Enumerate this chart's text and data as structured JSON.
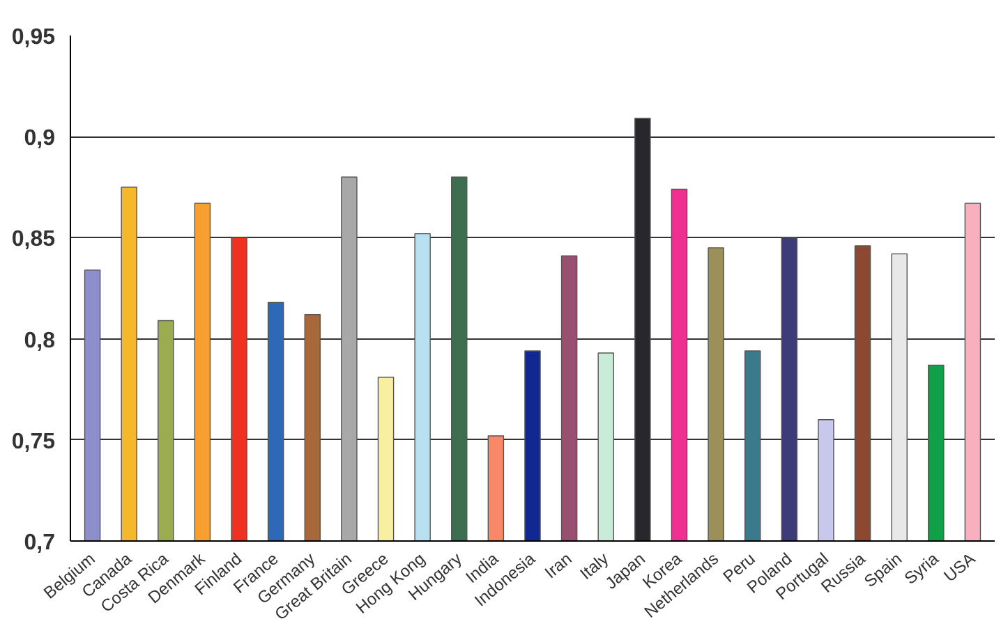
{
  "chart_data": {
    "type": "bar",
    "categories": [
      "Belgium",
      "Canada",
      "Costa Rica",
      "Denmark",
      "Finland",
      "France",
      "Germany",
      "Great Britain",
      "Greece",
      "Hong Kong",
      "Hungary",
      "India",
      "Indonesia",
      "Iran",
      "Italy",
      "Japan",
      "Korea",
      "Netherlands",
      "Peru",
      "Poland",
      "Portugal",
      "Russia",
      "Spain",
      "Syria",
      "USA"
    ],
    "values": [
      0.834,
      0.875,
      0.809,
      0.867,
      0.85,
      0.818,
      0.812,
      0.88,
      0.781,
      0.852,
      0.88,
      0.752,
      0.794,
      0.841,
      0.793,
      0.909,
      0.874,
      0.845,
      0.794,
      0.85,
      0.76,
      0.846,
      0.842,
      0.787,
      0.867
    ],
    "colors": [
      "#8c8fcc",
      "#f5b82a",
      "#9aab50",
      "#f7a030",
      "#f03020",
      "#2c6ab8",
      "#a8683a",
      "#a8a8a8",
      "#f8f0a0",
      "#b8e0f0",
      "#3e6e50",
      "#f88868",
      "#102890",
      "#985070",
      "#c8ecd8",
      "#28282c",
      "#f03090",
      "#9a9058",
      "#3a7a8c",
      "#3c3c78",
      "#c8c8ec",
      "#8c4830",
      "#e8e8e8",
      "#10a048",
      "#f8b0c0"
    ],
    "ylim": [
      0.7,
      0.95
    ],
    "yticks": [
      {
        "value": 0.7,
        "label": "0,7"
      },
      {
        "value": 0.75,
        "label": "0,75"
      },
      {
        "value": 0.8,
        "label": "0,8"
      },
      {
        "value": 0.85,
        "label": "0,85"
      },
      {
        "value": 0.9,
        "label": "0,9"
      },
      {
        "value": 0.95,
        "label": "0,95"
      }
    ],
    "grid": "y"
  }
}
